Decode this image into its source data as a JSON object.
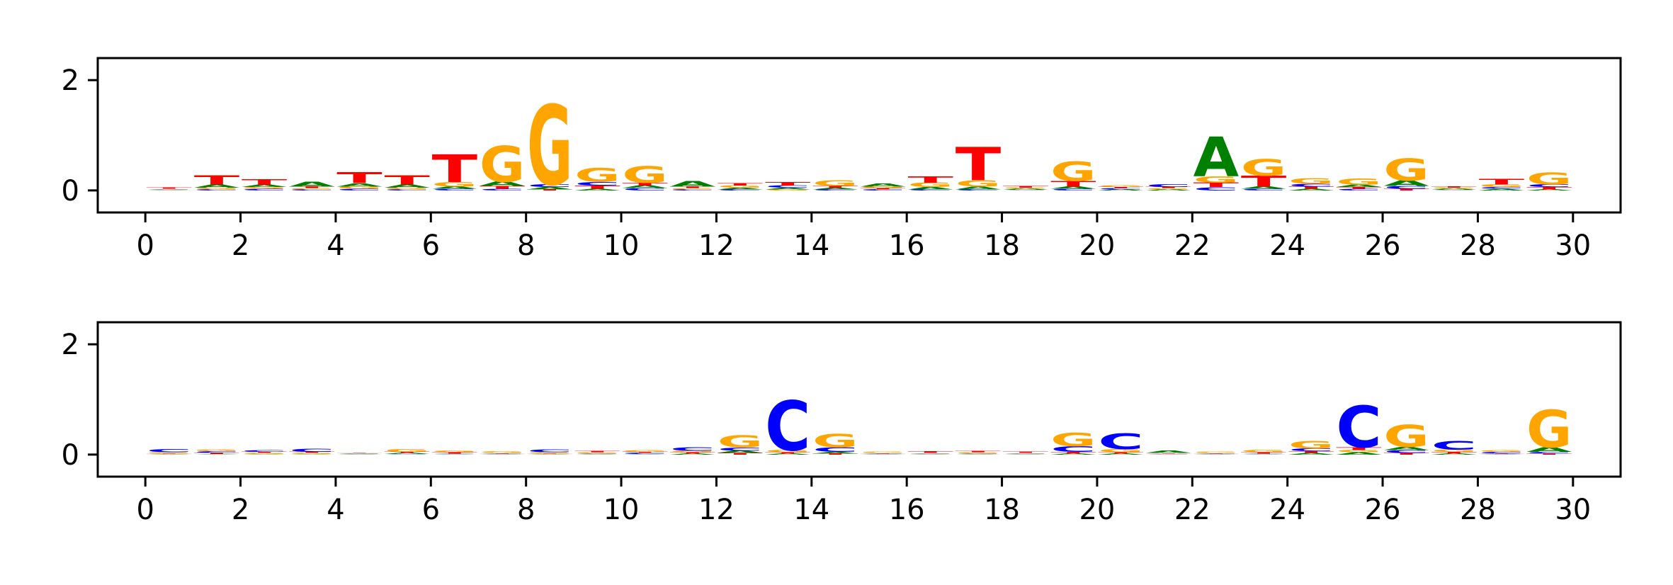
{
  "colors": {
    "A": "#008000",
    "C": "#0000ff",
    "G": "#ffa500",
    "T": "#ff0000"
  },
  "chart_data": [
    {
      "type": "sequence-logo",
      "xlim": [
        -1,
        31
      ],
      "ylim": [
        -0.4,
        2.4
      ],
      "xticks": [
        0,
        2,
        4,
        6,
        8,
        10,
        12,
        14,
        16,
        18,
        20,
        22,
        24,
        26,
        28,
        30
      ],
      "yticks": [
        0,
        2
      ],
      "columns": [
        {
          "x": 0,
          "A": 0.01,
          "C": 0.01,
          "G": 0.01,
          "T": 0.02
        },
        {
          "x": 1,
          "A": 0.06,
          "C": 0.02,
          "G": 0.03,
          "T": 0.17
        },
        {
          "x": 2,
          "A": 0.04,
          "C": 0.03,
          "G": 0.03,
          "T": 0.1
        },
        {
          "x": 3,
          "A": 0.09,
          "C": 0.02,
          "G": 0.02,
          "T": 0.03
        },
        {
          "x": 4,
          "A": 0.06,
          "C": 0.03,
          "G": 0.04,
          "T": 0.2
        },
        {
          "x": 5,
          "A": 0.06,
          "C": 0.02,
          "G": 0.03,
          "T": 0.17
        },
        {
          "x": 6,
          "A": 0.04,
          "C": 0.03,
          "G": 0.08,
          "T": 0.5
        },
        {
          "x": 7,
          "A": 0.08,
          "C": 0.03,
          "G": 0.65,
          "T": 0.05
        },
        {
          "x": 8,
          "A": 0.04,
          "C": 0.05,
          "G": 1.45,
          "T": 0.02
        },
        {
          "x": 9,
          "A": 0.03,
          "C": 0.07,
          "G": 0.25,
          "T": 0.06
        },
        {
          "x": 10,
          "A": 0.05,
          "C": 0.04,
          "G": 0.3,
          "T": 0.05
        },
        {
          "x": 11,
          "A": 0.1,
          "C": 0.02,
          "G": 0.02,
          "T": 0.03
        },
        {
          "x": 12,
          "A": 0.03,
          "C": 0.02,
          "G": 0.04,
          "T": 0.04
        },
        {
          "x": 13,
          "A": 0.03,
          "C": 0.04,
          "G": 0.02,
          "T": 0.07
        },
        {
          "x": 14,
          "A": 0.03,
          "C": 0.02,
          "G": 0.1,
          "T": 0.03
        },
        {
          "x": 15,
          "A": 0.06,
          "C": 0.02,
          "G": 0.03,
          "T": 0.02
        },
        {
          "x": 16,
          "A": 0.04,
          "C": 0.02,
          "G": 0.08,
          "T": 0.12
        },
        {
          "x": 17,
          "A": 0.05,
          "C": 0.02,
          "G": 0.12,
          "T": 0.6
        },
        {
          "x": 18,
          "A": 0.02,
          "C": 0.01,
          "G": 0.02,
          "T": 0.03
        },
        {
          "x": 19,
          "A": 0.04,
          "C": 0.03,
          "G": 0.35,
          "T": 0.1
        },
        {
          "x": 20,
          "A": 0.02,
          "C": 0.02,
          "G": 0.03,
          "T": 0.02
        },
        {
          "x": 21,
          "A": 0.02,
          "C": 0.05,
          "G": 0.02,
          "T": 0.02
        },
        {
          "x": 22,
          "A": 0.72,
          "C": 0.06,
          "G": 0.12,
          "T": 0.08
        },
        {
          "x": 23,
          "A": 0.04,
          "C": 0.03,
          "G": 0.3,
          "T": 0.2
        },
        {
          "x": 24,
          "A": 0.03,
          "C": 0.05,
          "G": 0.1,
          "T": 0.04
        },
        {
          "x": 25,
          "A": 0.04,
          "C": 0.03,
          "G": 0.12,
          "T": 0.03
        },
        {
          "x": 26,
          "A": 0.1,
          "C": 0.05,
          "G": 0.4,
          "T": 0.03
        },
        {
          "x": 27,
          "A": 0.02,
          "C": 0.01,
          "G": 0.02,
          "T": 0.02
        },
        {
          "x": 28,
          "A": 0.03,
          "C": 0.03,
          "G": 0.05,
          "T": 0.1
        },
        {
          "x": 29,
          "A": 0.02,
          "C": 0.05,
          "G": 0.22,
          "T": 0.04
        }
      ]
    },
    {
      "type": "sequence-logo",
      "xlim": [
        -1,
        31
      ],
      "ylim": [
        -0.4,
        2.4
      ],
      "xticks": [
        0,
        2,
        4,
        6,
        8,
        10,
        12,
        14,
        16,
        18,
        20,
        22,
        24,
        26,
        28,
        30
      ],
      "yticks": [
        0,
        2
      ],
      "columns": [
        {
          "x": 0,
          "A": 0.01,
          "C": 0.06,
          "G": 0.02,
          "T": 0.01
        },
        {
          "x": 1,
          "A": 0.01,
          "C": 0.03,
          "G": 0.03,
          "T": 0.02
        },
        {
          "x": 2,
          "A": 0.01,
          "C": 0.03,
          "G": 0.02,
          "T": 0.02
        },
        {
          "x": 3,
          "A": 0.01,
          "C": 0.06,
          "G": 0.02,
          "T": 0.02
        },
        {
          "x": 4,
          "A": 0.01,
          "C": 0.01,
          "G": 0.01,
          "T": 0.01
        },
        {
          "x": 5,
          "A": 0.02,
          "C": 0.01,
          "G": 0.05,
          "T": 0.02
        },
        {
          "x": 6,
          "A": 0.01,
          "C": 0.01,
          "G": 0.03,
          "T": 0.02
        },
        {
          "x": 7,
          "A": 0.01,
          "C": 0.01,
          "G": 0.03,
          "T": 0.01
        },
        {
          "x": 8,
          "A": 0.01,
          "C": 0.05,
          "G": 0.02,
          "T": 0.01
        },
        {
          "x": 9,
          "A": 0.01,
          "C": 0.01,
          "G": 0.02,
          "T": 0.02
        },
        {
          "x": 10,
          "A": 0.01,
          "C": 0.02,
          "G": 0.03,
          "T": 0.02
        },
        {
          "x": 11,
          "A": 0.02,
          "C": 0.07,
          "G": 0.03,
          "T": 0.02
        },
        {
          "x": 12,
          "A": 0.04,
          "C": 0.06,
          "G": 0.22,
          "T": 0.03
        },
        {
          "x": 13,
          "A": 0.02,
          "C": 0.9,
          "G": 0.04,
          "T": 0.02
        },
        {
          "x": 14,
          "A": 0.03,
          "C": 0.08,
          "G": 0.24,
          "T": 0.02
        },
        {
          "x": 15,
          "A": 0.01,
          "C": 0.01,
          "G": 0.02,
          "T": 0.01
        },
        {
          "x": 16,
          "A": 0.01,
          "C": 0.01,
          "G": 0.01,
          "T": 0.03
        },
        {
          "x": 17,
          "A": 0.01,
          "C": 0.01,
          "G": 0.02,
          "T": 0.02
        },
        {
          "x": 18,
          "A": 0.01,
          "C": 0.01,
          "G": 0.01,
          "T": 0.02
        },
        {
          "x": 19,
          "A": 0.02,
          "C": 0.1,
          "G": 0.24,
          "T": 0.03
        },
        {
          "x": 20,
          "A": 0.02,
          "C": 0.28,
          "G": 0.06,
          "T": 0.02
        },
        {
          "x": 21,
          "A": 0.04,
          "C": 0.01,
          "G": 0.01,
          "T": 0.01
        },
        {
          "x": 22,
          "A": 0.01,
          "C": 0.01,
          "G": 0.02,
          "T": 0.01
        },
        {
          "x": 23,
          "A": 0.01,
          "C": 0.01,
          "G": 0.04,
          "T": 0.02
        },
        {
          "x": 24,
          "A": 0.03,
          "C": 0.05,
          "G": 0.14,
          "T": 0.03
        },
        {
          "x": 25,
          "A": 0.04,
          "C": 0.75,
          "G": 0.04,
          "T": 0.05
        },
        {
          "x": 26,
          "A": 0.06,
          "C": 0.05,
          "G": 0.4,
          "T": 0.03
        },
        {
          "x": 27,
          "A": 0.02,
          "C": 0.16,
          "G": 0.04,
          "T": 0.03
        },
        {
          "x": 28,
          "A": 0.01,
          "C": 0.03,
          "G": 0.03,
          "T": 0.01
        },
        {
          "x": 29,
          "A": 0.08,
          "C": 0.03,
          "G": 0.68,
          "T": 0.02
        }
      ]
    }
  ]
}
